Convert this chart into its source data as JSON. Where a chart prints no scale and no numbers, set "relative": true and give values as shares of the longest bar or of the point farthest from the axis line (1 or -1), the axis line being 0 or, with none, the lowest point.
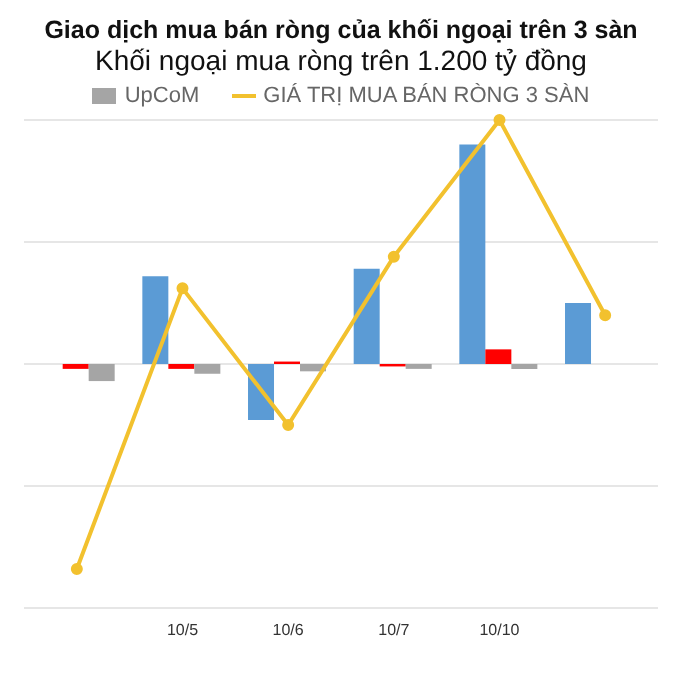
{
  "chart_data": {
    "type": "bar",
    "title": "Giao dịch mua bán ròng của khối ngoại trên 3 sàn",
    "subtitle": "Khối ngoại mua ròng trên 1.200 tỷ đồng",
    "relative": true,
    "categories": [
      null,
      "10/5",
      "10/6",
      "10/7",
      "10/10",
      null
    ],
    "series": [
      {
        "color": "#5b9bd5",
        "values": [
          null,
          0.36,
          -0.23,
          0.39,
          0.9,
          0.25
        ]
      },
      {
        "color": "#ff0000",
        "values": [
          -0.02,
          -0.02,
          0.01,
          -0.01,
          0.06,
          null
        ]
      },
      {
        "name": "UpCoM",
        "color": "#a5a5a5",
        "values": [
          -0.07,
          -0.04,
          -0.03,
          -0.02,
          -0.02,
          null
        ]
      },
      {
        "name": "GIÁ TRỊ MUA BÁN RÒNG 3 SÀN",
        "type": "line",
        "color": "#f2c12e",
        "marker": "circle",
        "values": [
          -0.84,
          0.31,
          -0.25,
          0.44,
          1,
          0.2
        ]
      }
    ],
    "grid": "y",
    "legend": "top"
  }
}
